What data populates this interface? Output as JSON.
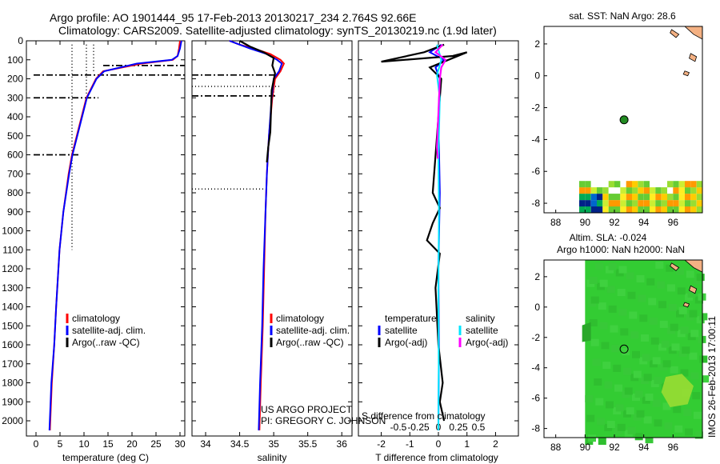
{
  "header": {
    "line1": "Argo profile: AO 1901444_95 17-Feb-2013 20130217_234 2.764S 92.66E",
    "line2": "Climatology: CARS2009. Satellite-adjusted climatology: synTS_20130219.nc (1.9d later)"
  },
  "colors": {
    "climatology": "#ff0000",
    "satellite": "#0000ff",
    "argo": "#000000",
    "sat_salinity": "#00e5ff",
    "argo_salinity": "#ff00ff",
    "map_land": "#f4b183",
    "sla_field": "#33cc33",
    "marker_fill": "#228b22"
  },
  "chart_data": [
    {
      "id": "temperature",
      "type": "line",
      "xlabel": "temperature (deg C)",
      "ylabel": "",
      "xlim": [
        -2,
        31
      ],
      "ylim": [
        2080,
        0
      ],
      "xticks": [
        0,
        5,
        10,
        15,
        20,
        25,
        30
      ],
      "yticks": [
        0,
        100,
        200,
        300,
        400,
        500,
        600,
        700,
        800,
        900,
        1000,
        1100,
        1200,
        1300,
        1400,
        1500,
        1600,
        1700,
        1800,
        1900,
        2000
      ],
      "legend": [
        "climatology",
        "satellite-adj. clim.",
        "Argo(..raw -QC)"
      ],
      "legend_position": "lower-middle",
      "series": [
        {
          "name": "climatology",
          "color": "#ff0000",
          "x": [
            30.0,
            29.8,
            29.5,
            28.5,
            22.0,
            14.0,
            12.5,
            11.5,
            10.5,
            9.5,
            8.5,
            7.5,
            6.8,
            5.7,
            4.9,
            4.2,
            3.8,
            3.3,
            2.9
          ],
          "y": [
            0,
            40,
            80,
            100,
            120,
            160,
            200,
            250,
            300,
            400,
            500,
            600,
            700,
            900,
            1100,
            1400,
            1600,
            1800,
            2050
          ]
        },
        {
          "name": "satellite-adj. clim.",
          "color": "#0000ff",
          "x": [
            30.3,
            30.0,
            29.5,
            28.3,
            21.0,
            14.2,
            12.6,
            11.6,
            10.6,
            9.6,
            8.6,
            7.6,
            6.9,
            5.7,
            4.9,
            4.2,
            3.8,
            3.2,
            2.8
          ],
          "y": [
            0,
            40,
            80,
            100,
            120,
            160,
            200,
            250,
            300,
            400,
            500,
            600,
            700,
            900,
            1100,
            1400,
            1600,
            1800,
            2050
          ]
        }
      ],
      "profile_markers": {
        "dotted_verticals": [
          {
            "x": 7.5,
            "y": [
              20,
              1100
            ]
          },
          {
            "x": 10.5,
            "y": [
              20,
              280
            ]
          },
          {
            "x": 12.0,
            "y": [
              20,
              170
            ]
          }
        ],
        "dashdot_horizontals": [
          {
            "y": 130,
            "x": [
              14,
              31
            ]
          },
          {
            "y": 180,
            "x": [
              -0.5,
              31
            ]
          },
          {
            "y": 300,
            "x": [
              -0.5,
              13
            ]
          },
          {
            "y": 600,
            "x": [
              -0.5,
              9
            ]
          }
        ]
      }
    },
    {
      "id": "salinity",
      "type": "line",
      "xlabel": "salinity",
      "xlim": [
        33.8,
        36.15
      ],
      "ylim": [
        2080,
        0
      ],
      "xticks": [
        34,
        34.5,
        35,
        35.5,
        36
      ],
      "legend": [
        "climatology",
        "satellite-adj. clim.",
        "Argo(..raw -QC)"
      ],
      "legend_position": "lower-right",
      "series": [
        {
          "name": "climatology",
          "color": "#ff0000",
          "x": [
            34.35,
            34.5,
            34.7,
            34.95,
            35.1,
            35.15,
            35.1,
            35.02,
            34.98,
            34.93,
            34.9,
            34.88,
            34.86,
            34.84,
            34.81,
            34.79
          ],
          "y": [
            0,
            20,
            40,
            70,
            100,
            120,
            160,
            200,
            300,
            500,
            700,
            900,
            1200,
            1500,
            1800,
            2050
          ]
        },
        {
          "name": "satellite-adj. clim.",
          "color": "#0000ff",
          "x": [
            34.35,
            34.5,
            34.65,
            34.9,
            35.05,
            35.12,
            35.08,
            35.0,
            34.97,
            34.93,
            34.9,
            34.88,
            34.85,
            34.83,
            34.8,
            34.78
          ],
          "y": [
            0,
            20,
            40,
            70,
            100,
            120,
            160,
            200,
            300,
            500,
            700,
            900,
            1200,
            1500,
            1800,
            2050
          ]
        },
        {
          "name": "Argo(..raw -QC)",
          "color": "#000000",
          "x": [
            34.5,
            34.65,
            34.85,
            35.0,
            34.98,
            35.02,
            34.97,
            34.95,
            34.92,
            34.9
          ],
          "y": [
            0,
            30,
            60,
            90,
            130,
            170,
            260,
            480,
            560,
            640
          ]
        }
      ],
      "profile_markers": {
        "dashdot_horizontals": [
          {
            "y": 180,
            "x": [
              33.8,
              35.05
            ]
          },
          {
            "y": 290,
            "x": [
              33.8,
              35.05
            ]
          }
        ],
        "dotted_horizontals": [
          {
            "y": 240,
            "x": [
              33.8,
              35.1
            ]
          },
          {
            "y": 780,
            "x": [
              33.8,
              34.9
            ]
          }
        ],
        "dotted_verticals": [
          {
            "x": 35.0,
            "y": [
              200,
              300
            ]
          }
        ]
      },
      "annotation": [
        "US ARGO PROJECT",
        "PI: GREGORY C. JOHNSON"
      ]
    },
    {
      "id": "difference",
      "type": "line",
      "xlabel": "T difference from climatology",
      "xlabel_top": "S difference from climatology",
      "xlim": [
        -2.8,
        2.8
      ],
      "ylim": [
        2080,
        0
      ],
      "xticks": [
        -2,
        -1,
        0,
        1,
        2
      ],
      "xticks_salinity": [
        -0.5,
        -0.25,
        0,
        0.25,
        0.5
      ],
      "legend_groups": [
        {
          "title": "temperature",
          "entries": [
            "satellite",
            "Argo(-adj)"
          ]
        },
        {
          "title": "salinity",
          "entries": [
            "satellite",
            "Argo(-adj)"
          ]
        }
      ],
      "series": [
        {
          "name": "temperature satellite",
          "color": "#0000ff",
          "x": [
            0.1,
            -0.3,
            0.2,
            -0.1,
            0.05,
            0.0,
            0.05,
            0.0,
            0.02,
            0.0
          ],
          "y": [
            20,
            60,
            100,
            140,
            200,
            400,
            800,
            1200,
            1600,
            2050
          ]
        },
        {
          "name": "temperature Argo(-adj)",
          "color": "#000000",
          "x": [
            0.2,
            -0.5,
            -2.0,
            0.5,
            1.0,
            -0.3,
            0.1,
            -0.2,
            0.05,
            -0.2,
            -0.4,
            0.05,
            -0.1,
            0.0,
            0.15,
            0.05,
            0.2
          ],
          "y": [
            20,
            60,
            110,
            80,
            60,
            140,
            200,
            800,
            880,
            960,
            1050,
            1120,
            1300,
            1600,
            1800,
            1900,
            2000
          ]
        },
        {
          "name": "salinity satellite",
          "color": "#00e5ff",
          "x": [
            -0.05,
            0.1,
            -0.05,
            0.05,
            0.0,
            0.02,
            0.0,
            0.01,
            0.0
          ],
          "y": [
            20,
            100,
            180,
            300,
            600,
            900,
            1300,
            1700,
            2050
          ]
        },
        {
          "name": "salinity Argo(-adj)",
          "color": "#ff00ff",
          "x": [
            0.15,
            -0.1,
            0.25,
            0.1,
            0.05,
            -0.05,
            -0.02
          ],
          "y": [
            20,
            60,
            100,
            140,
            200,
            560,
            620
          ]
        }
      ]
    },
    {
      "id": "sst_map",
      "type": "heatmap",
      "title": "sat. SST: NaN Argo: 28.6",
      "xlim": [
        87.2,
        98
      ],
      "ylim": [
        -8.6,
        3.1
      ],
      "xticks": [
        88,
        90,
        92,
        94,
        96
      ],
      "yticks": [
        2,
        0,
        -2,
        -4,
        -6,
        -8
      ],
      "argo_position": [
        92.66,
        -2.764
      ]
    },
    {
      "id": "sla_map",
      "type": "heatmap",
      "title": "Altim. SLA: -0.024",
      "subtitle": "Argo h1000: NaN h2000: NaN",
      "xlim": [
        87.2,
        98
      ],
      "ylim": [
        -8.6,
        3.1
      ],
      "xticks": [
        88,
        90,
        92,
        94,
        96
      ],
      "yticks": [
        2,
        0,
        -2,
        -4,
        -6,
        -8
      ],
      "argo_position": [
        92.66,
        -2.764
      ]
    }
  ],
  "footer": {
    "credit": "IMOS 26-Feb-2013 17:00:11"
  }
}
